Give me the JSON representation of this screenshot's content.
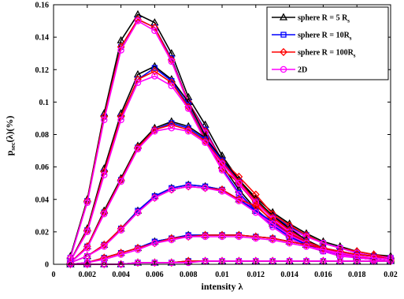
{
  "chart_data": {
    "type": "line",
    "xlabel": "intensity λ",
    "ylabel_main": "p",
    "ylabel_sub": "sec",
    "ylabel_rest": "(λ)(%)",
    "xlim": [
      0,
      0.02
    ],
    "ylim": [
      0,
      0.16
    ],
    "x_ticks": [
      "0",
      "0.002",
      "0.004",
      "0.006",
      "0.008",
      "0.01",
      "0.012",
      "0.014",
      "0.016",
      "0.018",
      "0.02"
    ],
    "y_ticks": [
      "0",
      "0.02",
      "0.04",
      "0.06",
      "0.08",
      "0.1",
      "0.12",
      "0.14",
      "0.16"
    ],
    "x": [
      0.001,
      0.002,
      0.003,
      0.004,
      0.005,
      0.006,
      0.007,
      0.008,
      0.009,
      0.01,
      0.011,
      0.012,
      0.013,
      0.014,
      0.015,
      0.016,
      0.017,
      0.018,
      0.019,
      0.02
    ],
    "legend": {
      "position": "top-right",
      "entries": [
        {
          "key": "s5",
          "label": "sphere R = 5 R",
          "label_sub": "s",
          "color": "#000000",
          "marker": "triangle"
        },
        {
          "key": "s10",
          "label": "sphere R = 10R",
          "label_sub": "s",
          "color": "#0000ff",
          "marker": "square"
        },
        {
          "key": "s100",
          "label": "sphere R = 100R",
          "label_sub": "s",
          "color": "#ff0000",
          "marker": "diamond"
        },
        {
          "key": "d2",
          "label": "2D",
          "label_sub": "",
          "color": "#ff00ff",
          "marker": "circle"
        }
      ]
    },
    "curve_groups": [
      {
        "s5": [
          0.005,
          0.04,
          0.093,
          0.138,
          0.154,
          0.149,
          0.13,
          0.103,
          0.086,
          0.067,
          0.052,
          0.041,
          0.032,
          0.025,
          0.019,
          0.014,
          0.011,
          0.008,
          0.006,
          0.005
        ],
        "s10": [
          0.004,
          0.039,
          0.091,
          0.134,
          0.151,
          0.146,
          0.127,
          0.1,
          0.083,
          0.064,
          0.05,
          0.039,
          0.03,
          0.023,
          0.018,
          0.013,
          0.01,
          0.007,
          0.005,
          0.004
        ],
        "s100": [
          0.004,
          0.039,
          0.091,
          0.134,
          0.151,
          0.146,
          0.126,
          0.1,
          0.082,
          0.064,
          0.054,
          0.043,
          0.031,
          0.024,
          0.018,
          0.013,
          0.01,
          0.008,
          0.006,
          0.004
        ],
        "d2": [
          0.004,
          0.038,
          0.089,
          0.132,
          0.15,
          0.144,
          0.125,
          0.099,
          0.081,
          0.063,
          0.049,
          0.038,
          0.029,
          0.022,
          0.017,
          0.013,
          0.01,
          0.007,
          0.005,
          0.004
        ]
      },
      {
        "s5": [
          0.002,
          0.022,
          0.059,
          0.093,
          0.117,
          0.122,
          0.114,
          0.1,
          0.079,
          0.061,
          0.046,
          0.034,
          0.025,
          0.018,
          0.012,
          0.009,
          0.006,
          0.004,
          0.003,
          0.002
        ],
        "s10": [
          0.002,
          0.021,
          0.057,
          0.091,
          0.114,
          0.121,
          0.113,
          0.098,
          0.077,
          0.059,
          0.044,
          0.033,
          0.024,
          0.017,
          0.012,
          0.008,
          0.006,
          0.004,
          0.003,
          0.002
        ],
        "s100": [
          0.002,
          0.021,
          0.057,
          0.091,
          0.114,
          0.119,
          0.112,
          0.097,
          0.077,
          0.059,
          0.05,
          0.037,
          0.026,
          0.019,
          0.013,
          0.009,
          0.006,
          0.004,
          0.003,
          0.002
        ],
        "d2": [
          0.002,
          0.02,
          0.055,
          0.089,
          0.112,
          0.116,
          0.11,
          0.096,
          0.076,
          0.058,
          0.043,
          0.032,
          0.023,
          0.016,
          0.011,
          0.008,
          0.005,
          0.004,
          0.003,
          0.002
        ]
      },
      {
        "s5": [
          0.001,
          0.011,
          0.033,
          0.053,
          0.073,
          0.084,
          0.088,
          0.085,
          0.078,
          0.065,
          0.052,
          0.04,
          0.03,
          0.022,
          0.015,
          0.01,
          0.007,
          0.005,
          0.003,
          0.002
        ],
        "s10": [
          0.001,
          0.011,
          0.032,
          0.052,
          0.072,
          0.083,
          0.087,
          0.084,
          0.077,
          0.064,
          0.051,
          0.039,
          0.029,
          0.021,
          0.014,
          0.01,
          0.007,
          0.004,
          0.003,
          0.002
        ],
        "s100": [
          0.001,
          0.011,
          0.032,
          0.052,
          0.072,
          0.083,
          0.086,
          0.083,
          0.076,
          0.063,
          0.051,
          0.039,
          0.029,
          0.021,
          0.014,
          0.01,
          0.007,
          0.004,
          0.003,
          0.002
        ],
        "d2": [
          0.001,
          0.01,
          0.031,
          0.051,
          0.071,
          0.082,
          0.084,
          0.082,
          0.075,
          0.062,
          0.05,
          0.038,
          0.028,
          0.02,
          0.014,
          0.009,
          0.006,
          0.004,
          0.003,
          0.002
        ]
      },
      {
        "s5": [
          0.001,
          0.005,
          0.012,
          0.022,
          0.033,
          0.042,
          0.047,
          0.049,
          0.048,
          0.046,
          0.04,
          0.033,
          0.026,
          0.019,
          0.014,
          0.01,
          0.007,
          0.005,
          0.003,
          0.002
        ],
        "s10": [
          0.001,
          0.005,
          0.012,
          0.022,
          0.033,
          0.042,
          0.047,
          0.049,
          0.048,
          0.046,
          0.04,
          0.033,
          0.026,
          0.019,
          0.014,
          0.01,
          0.007,
          0.005,
          0.003,
          0.002
        ],
        "s100": [
          0.001,
          0.005,
          0.012,
          0.022,
          0.032,
          0.041,
          0.046,
          0.048,
          0.047,
          0.046,
          0.04,
          0.036,
          0.027,
          0.019,
          0.014,
          0.01,
          0.007,
          0.005,
          0.003,
          0.002
        ],
        "d2": [
          0.001,
          0.005,
          0.011,
          0.021,
          0.032,
          0.041,
          0.046,
          0.048,
          0.047,
          0.045,
          0.039,
          0.032,
          0.025,
          0.018,
          0.013,
          0.009,
          0.006,
          0.004,
          0.003,
          0.002
        ]
      },
      {
        "s5": [
          0.0,
          0.001,
          0.004,
          0.007,
          0.01,
          0.014,
          0.016,
          0.018,
          0.018,
          0.018,
          0.018,
          0.017,
          0.016,
          0.014,
          0.012,
          0.01,
          0.008,
          0.006,
          0.005,
          0.003
        ],
        "s10": [
          0.0,
          0.001,
          0.004,
          0.007,
          0.01,
          0.014,
          0.016,
          0.018,
          0.018,
          0.018,
          0.018,
          0.017,
          0.016,
          0.014,
          0.012,
          0.01,
          0.008,
          0.006,
          0.005,
          0.003
        ],
        "s100": [
          0.0,
          0.001,
          0.004,
          0.007,
          0.01,
          0.013,
          0.016,
          0.017,
          0.018,
          0.018,
          0.018,
          0.017,
          0.016,
          0.014,
          0.012,
          0.01,
          0.008,
          0.006,
          0.005,
          0.003
        ],
        "d2": [
          0.0,
          0.001,
          0.003,
          0.006,
          0.009,
          0.013,
          0.015,
          0.017,
          0.017,
          0.017,
          0.017,
          0.016,
          0.015,
          0.013,
          0.011,
          0.009,
          0.007,
          0.005,
          0.004,
          0.003
        ]
      },
      {
        "s5": [
          0.0,
          0.0,
          0.0,
          0.0,
          0.001,
          0.001,
          0.001,
          0.002,
          0.002,
          0.002,
          0.002,
          0.002,
          0.002,
          0.002,
          0.002,
          0.002,
          0.002,
          0.002,
          0.002,
          0.002
        ],
        "s10": [
          0.0,
          0.0,
          0.0,
          0.0,
          0.001,
          0.001,
          0.001,
          0.002,
          0.002,
          0.002,
          0.002,
          0.002,
          0.002,
          0.002,
          0.002,
          0.002,
          0.002,
          0.002,
          0.002,
          0.002
        ],
        "s100": [
          0.0,
          0.0,
          0.0,
          0.0,
          0.001,
          0.001,
          0.001,
          0.002,
          0.002,
          0.002,
          0.002,
          0.002,
          0.002,
          0.002,
          0.002,
          0.002,
          0.002,
          0.002,
          0.002,
          0.002
        ],
        "d2": [
          0.0,
          0.0,
          0.0,
          0.0,
          0.001,
          0.001,
          0.001,
          0.001,
          0.002,
          0.002,
          0.002,
          0.002,
          0.002,
          0.002,
          0.002,
          0.002,
          0.002,
          0.002,
          0.002,
          0.002
        ]
      }
    ]
  }
}
